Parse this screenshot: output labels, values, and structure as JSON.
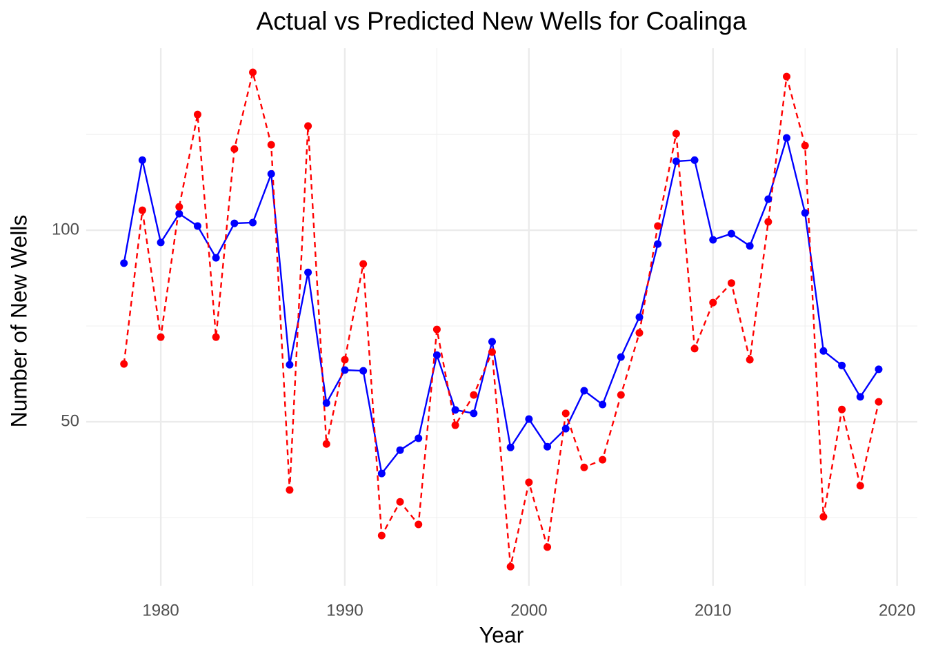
{
  "chart_data": {
    "type": "line",
    "title": "Actual vs Predicted New Wells for Coalinga",
    "x_label": "Year",
    "y_label": "Number of New Wells",
    "x": [
      1978,
      1979,
      1980,
      1981,
      1982,
      1983,
      1984,
      1985,
      1986,
      1987,
      1988,
      1989,
      1990,
      1991,
      1992,
      1993,
      1994,
      1995,
      1996,
      1997,
      1998,
      1999,
      2000,
      2001,
      2002,
      2003,
      2004,
      2005,
      2006,
      2007,
      2008,
      2009,
      2010,
      2011,
      2012,
      2013,
      2014,
      2015,
      2016,
      2017,
      2018,
      2019
    ],
    "series": [
      {
        "color": "#0000ff",
        "dash": false,
        "values": [
          91.4,
          118.3,
          96.8,
          104.3,
          101.1,
          92.8,
          101.8,
          102.0,
          114.7,
          64.9,
          89.0,
          54.9,
          63.5,
          63.3,
          36.5,
          42.6,
          45.7,
          67.4,
          53.1,
          52.2,
          70.9,
          43.3,
          50.7,
          43.5,
          48.2,
          58.1,
          54.5,
          66.9,
          77.3,
          96.4,
          118.0,
          118.3,
          97.5,
          99.1,
          95.9,
          108.1,
          124.1,
          104.5,
          68.5,
          64.7,
          56.5,
          63.7
        ]
      },
      {
        "color": "#ff0000",
        "dash": true,
        "values": [
          65.1,
          105.2,
          72.1,
          106.1,
          130.2,
          72.1,
          121.2,
          141.2,
          122.3,
          32.2,
          127.2,
          44.2,
          66.2,
          91.2,
          20.3,
          29.1,
          23.2,
          74.1,
          49.1,
          57.0,
          68.2,
          12.2,
          34.2,
          17.3,
          52.2,
          38.1,
          40.1,
          57.0,
          73.2,
          101.1,
          125.2,
          69.1,
          81.1,
          86.2,
          66.2,
          102.2,
          140.1,
          122.1,
          25.2,
          53.2,
          33.3,
          55.2
        ]
      }
    ],
    "xlim": [
      1975.95,
      2021.1
    ],
    "ylim": [
      7.2,
      147.5
    ],
    "xticks": [
      1980,
      1990,
      2000,
      2010,
      2020
    ],
    "yticks": [
      50,
      100
    ],
    "minor_xticks": [
      1985,
      1995,
      2005,
      2015
    ],
    "minor_yticks": [
      25,
      75,
      125
    ],
    "grid": true
  }
}
